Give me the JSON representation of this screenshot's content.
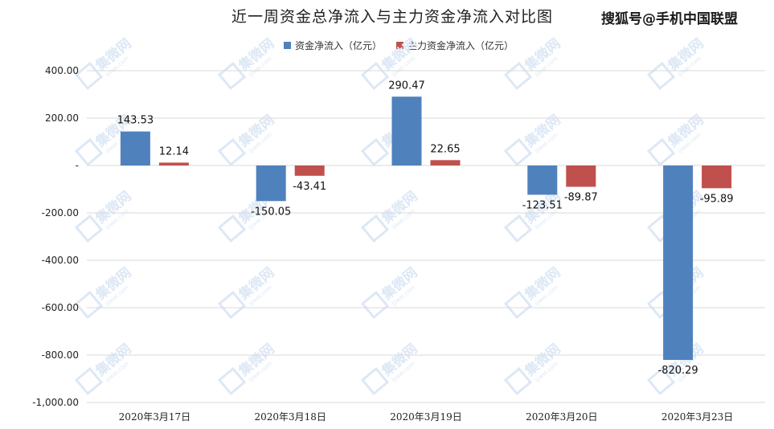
{
  "header": {
    "title": "近一周资金总净流入与主力资金净流入对比图",
    "source_label": "搜狐号@手机中国联盟"
  },
  "watermark": {
    "text": "集微网",
    "subtext": "ijiwei.com",
    "color": "#dde8f5"
  },
  "colors": {
    "series1": "#4f81bd",
    "series2": "#c0504d",
    "grid": "#d9d9d9"
  },
  "chart_data": {
    "type": "bar",
    "title": "近一周资金总净流入与主力资金净流入对比图",
    "categories": [
      "2020年3月17日",
      "2020年3月18日",
      "2020年3月19日",
      "2020年3月20日",
      "2020年3月23日"
    ],
    "series": [
      {
        "name": "资金净流入（亿元）",
        "values": [
          143.53,
          -150.05,
          290.47,
          -123.51,
          -820.29
        ],
        "labels": [
          "143.53",
          "-150.05",
          "290.47",
          "-123.51",
          "-820.29"
        ]
      },
      {
        "name": "主力资金净流入（亿元）",
        "values": [
          12.14,
          -43.41,
          22.65,
          -89.87,
          -95.89
        ],
        "labels": [
          "12.14",
          "-43.41",
          "22.65",
          "-89.87",
          "-95.89"
        ]
      }
    ],
    "ylim": [
      -1000,
      400
    ],
    "yticks": [
      400,
      200,
      0,
      -200,
      -400,
      -600,
      -800,
      -1000
    ],
    "ytick_labels": [
      "400.00",
      "200.00",
      "-",
      "-200.00",
      "-400.00",
      "-600.00",
      "-800.00",
      "-1,000.00"
    ],
    "grid": true,
    "legend_position": "top"
  }
}
